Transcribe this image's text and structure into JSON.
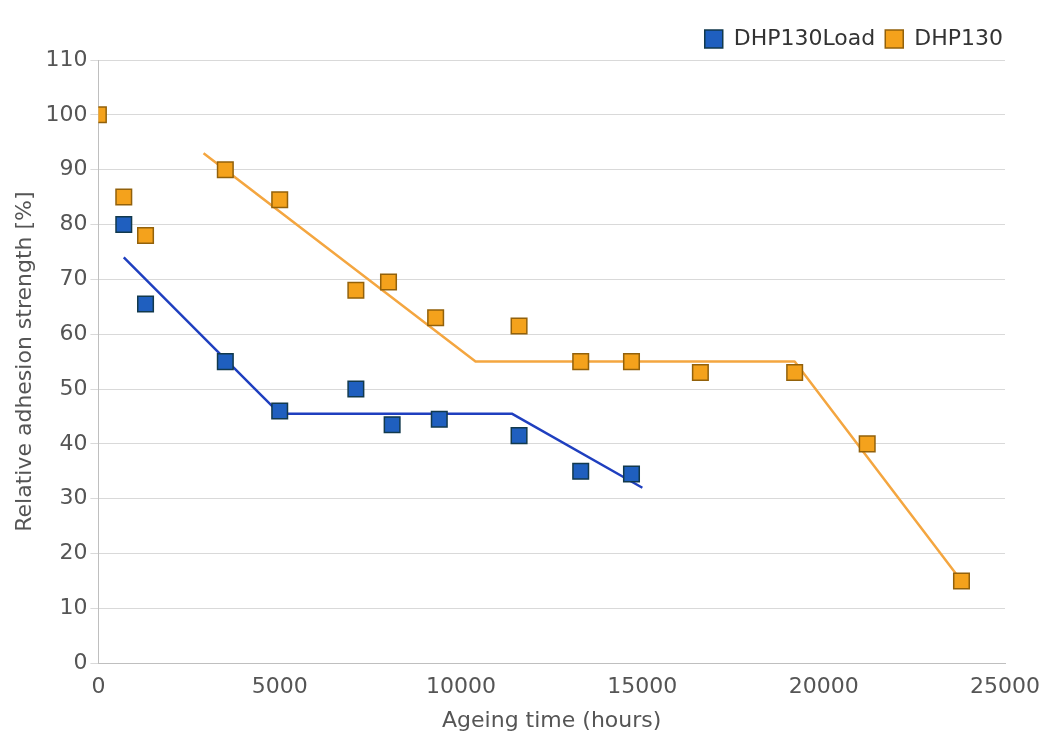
{
  "chart_data": {
    "type": "scatter",
    "xlabel": "Ageing time (hours)",
    "ylabel": "Relative adhesion strength [%]",
    "xlim": [
      0,
      25000
    ],
    "xticks": [
      0,
      5000,
      10000,
      15000,
      20000,
      25000
    ],
    "ylim": [
      0,
      110
    ],
    "yticks": [
      0,
      10,
      20,
      30,
      40,
      50,
      60,
      70,
      80,
      90,
      100,
      110
    ],
    "grid": "y",
    "legend": "top right",
    "series": [
      {
        "name": "DHP130Load",
        "color": "#1f5fbf",
        "marker": "square",
        "x": [
          700,
          1300,
          3500,
          5000,
          7100,
          8100,
          9400,
          11600,
          13300,
          14700
        ],
        "values": [
          80,
          65.5,
          55,
          46,
          50,
          43.5,
          44.5,
          41.5,
          35,
          34.5
        ]
      },
      {
        "name": "DHP130",
        "color": "#f4a21c",
        "marker": "square",
        "x": [
          0,
          700,
          1300,
          3500,
          5000,
          7100,
          8000,
          9300,
          11600,
          13300,
          14700,
          16600,
          19200,
          21200,
          23800
        ],
        "values": [
          100,
          85,
          78,
          90,
          84.5,
          68,
          69.5,
          63,
          61.5,
          55,
          55,
          53,
          53,
          40,
          15
        ]
      },
      {
        "type": "line",
        "marker": "none",
        "color": "#1f3fbf",
        "x": [
          700,
          5000,
          11400,
          15000
        ],
        "values": [
          74,
          45.5,
          45.5,
          32
        ]
      },
      {
        "type": "line",
        "marker": "none",
        "color": "#f4a640",
        "x": [
          2900,
          10400,
          19200,
          23800
        ],
        "values": [
          93,
          55,
          55,
          15
        ]
      }
    ]
  }
}
